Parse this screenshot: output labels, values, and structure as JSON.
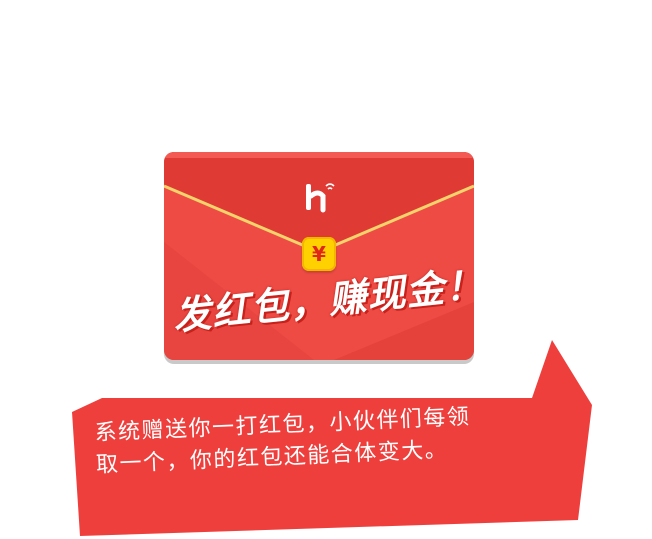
{
  "envelope": {
    "currency_symbol": "¥",
    "slogan": "发红包，赚现金！",
    "logo_icon": "hi-logo-icon",
    "colors": {
      "body": "#ee4b45",
      "flap": "#e33f3a",
      "trim": "#f6d36b",
      "seal": "#ffd100"
    }
  },
  "bubble": {
    "line1": "系统赠送你一打红包，小伙伴们每领",
    "line2": "取一个，你的红包还能合体变大。",
    "color": "#ef3f3c"
  }
}
